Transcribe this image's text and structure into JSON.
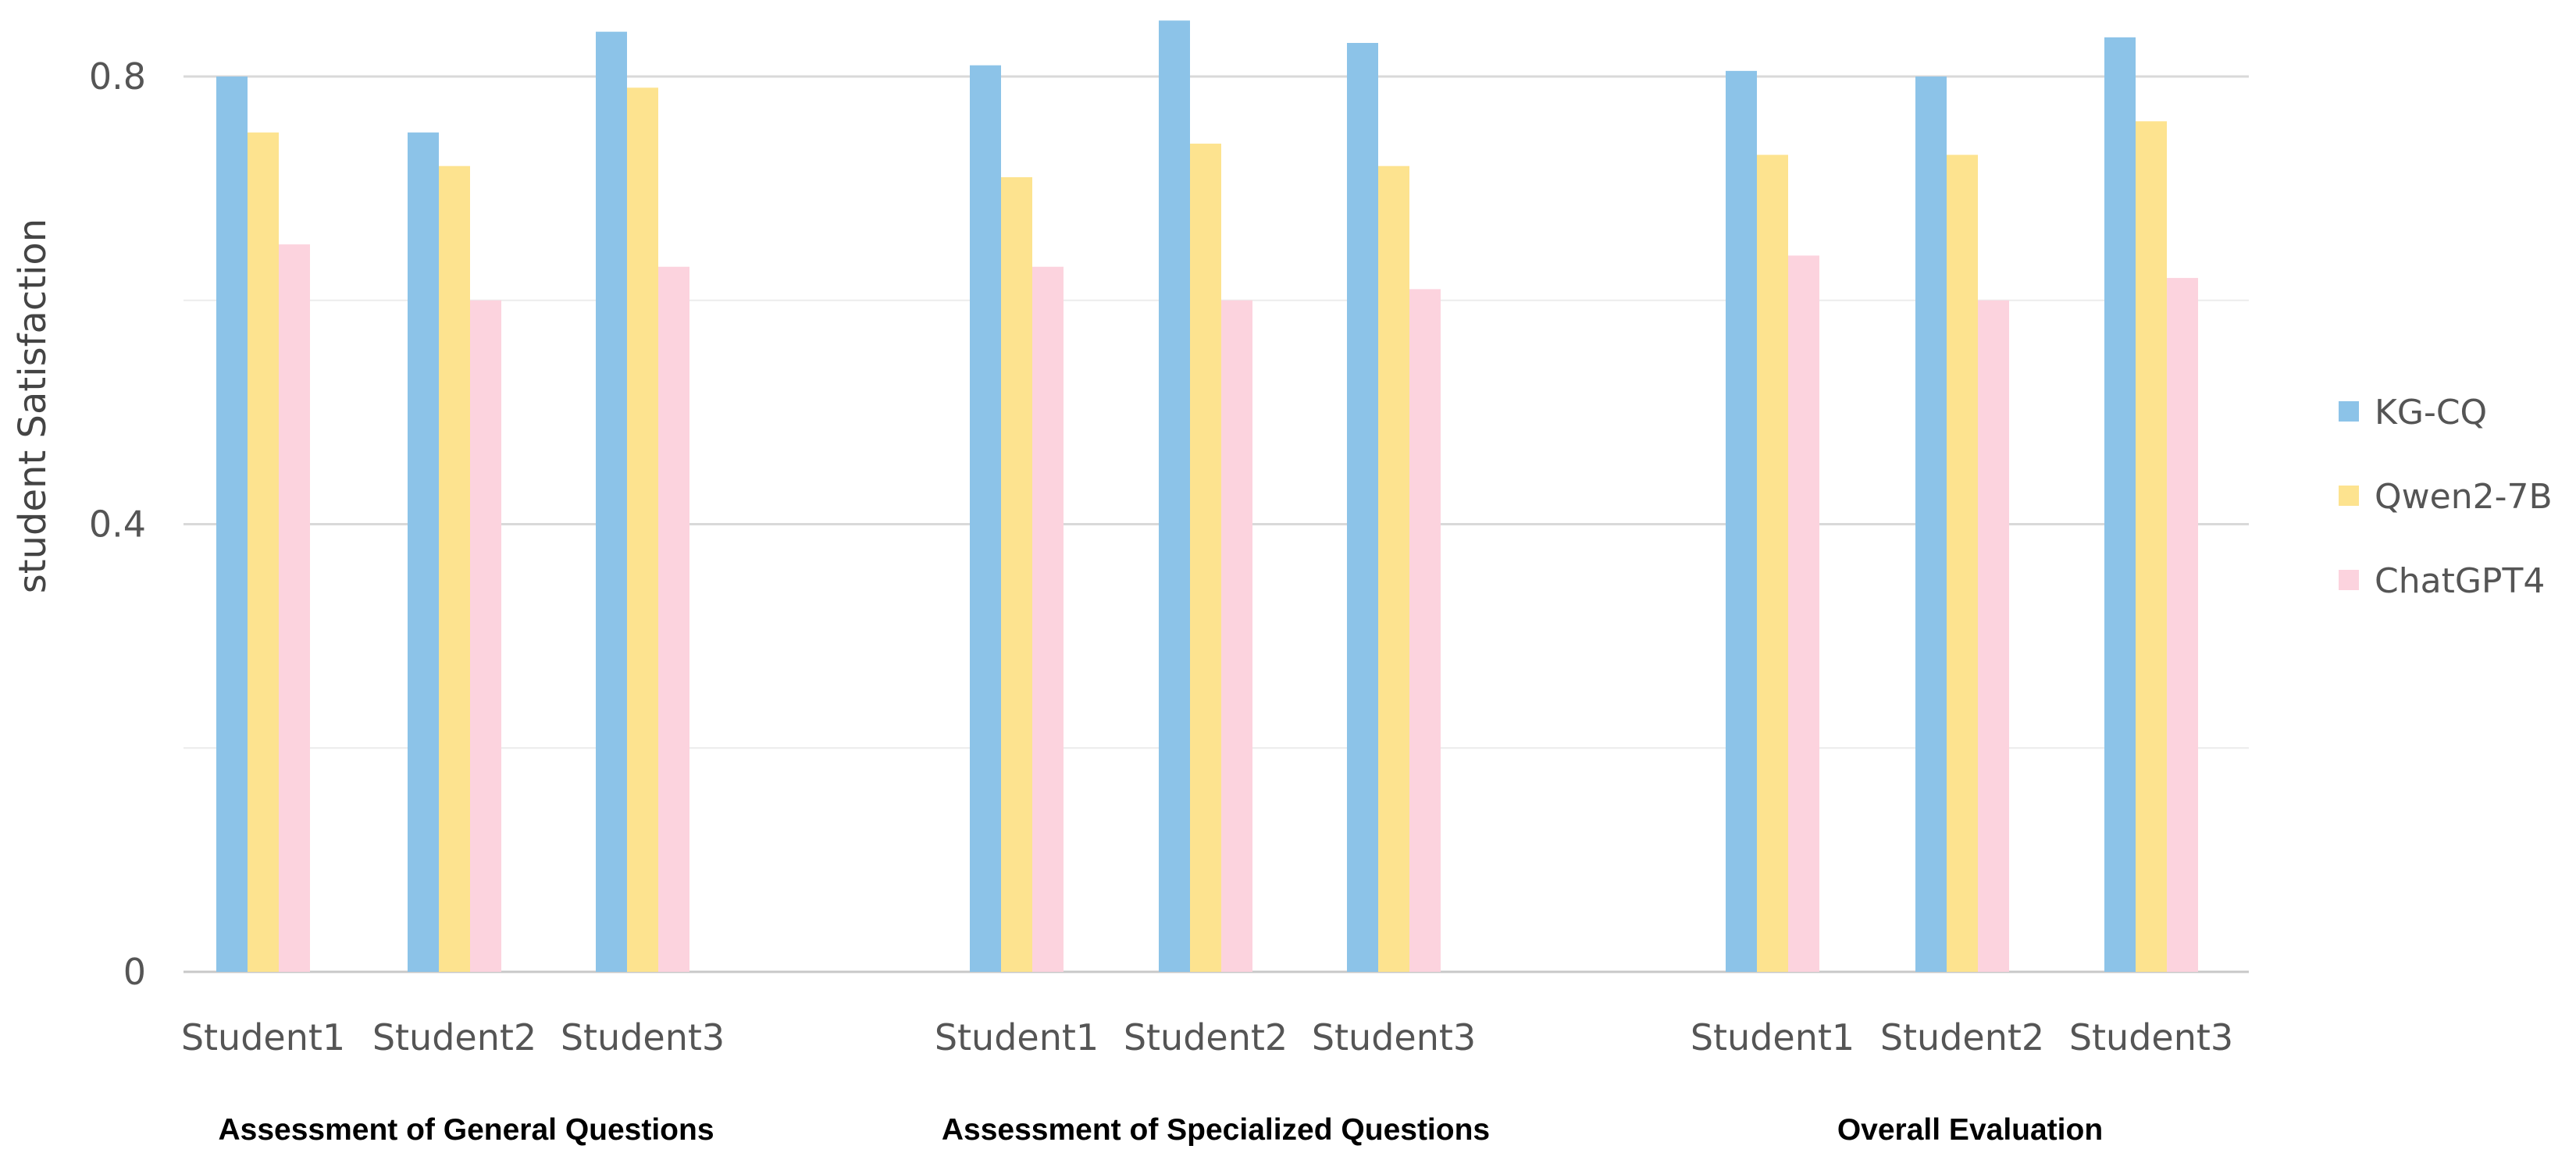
{
  "chart_data": {
    "type": "bar",
    "title": "",
    "xlabel": "",
    "ylabel": "student Satisfaction",
    "ylim": [
      0,
      0.8
    ],
    "yticks": [
      {
        "value": 0,
        "label": "0"
      },
      {
        "value": 0.4,
        "label": "0.4"
      },
      {
        "value": 0.8,
        "label": "0.8"
      }
    ],
    "minor_gridlines": [
      0.2,
      0.6
    ],
    "grid": true,
    "legend_position": "right",
    "groups": [
      {
        "name": "Assessment of General Questions",
        "categories": [
          "Student1",
          "Student2",
          "Student3"
        ]
      },
      {
        "name": "Assessment of Specialized Questions",
        "categories": [
          "Student1",
          "Student2",
          "Student3"
        ]
      },
      {
        "name": "Overall Evaluation",
        "categories": [
          "Student1",
          "Student2",
          "Student3"
        ]
      }
    ],
    "series": [
      {
        "name": "KG-CQ",
        "color": "#8cc3e8",
        "values": [
          0.8,
          0.75,
          0.84,
          0.81,
          0.85,
          0.83,
          0.805,
          0.8,
          0.835
        ]
      },
      {
        "name": "Qwen2-7B",
        "color": "#fde38f",
        "values": [
          0.75,
          0.72,
          0.79,
          0.71,
          0.74,
          0.72,
          0.73,
          0.73,
          0.76
        ]
      },
      {
        "name": "ChatGPT4",
        "color": "#fcd3de",
        "values": [
          0.65,
          0.6,
          0.63,
          0.63,
          0.6,
          0.61,
          0.64,
          0.6,
          0.62
        ]
      }
    ]
  }
}
